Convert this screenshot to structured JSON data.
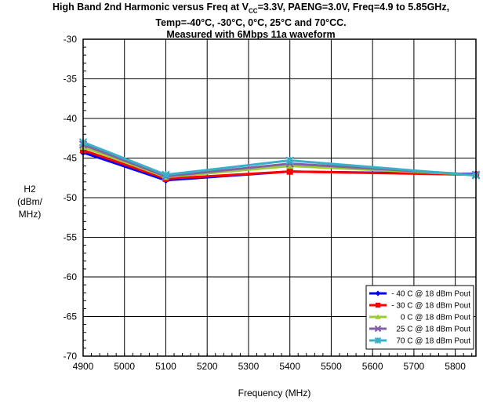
{
  "chart_data": {
    "type": "line",
    "title_prefix": "High Band 2nd Harmonic versus Freq at V",
    "title_sub": "CC",
    "title_rest": "=3.3V, PAENG=3.0V, Freq=4.9 to 5.85GHz, Temp=-40°C, -30°C, 0°C, 25°C and 70°CC.",
    "subtitle": "Measured with 6Mbps 11a waveform",
    "xlabel": "Frequency (MHz)",
    "ylabel_lines": [
      "H2",
      "(dBm/",
      "MHz)"
    ],
    "xlim": [
      4900,
      5850
    ],
    "ylim": [
      -70,
      -30
    ],
    "xticks": [
      4900,
      5000,
      5100,
      5200,
      5300,
      5400,
      5500,
      5600,
      5700,
      5800
    ],
    "yticks": [
      -30,
      -35,
      -40,
      -45,
      -50,
      -55,
      -60,
      -65,
      -70
    ],
    "grid": true,
    "legend_position": "bottom-right",
    "x": [
      4900,
      5100,
      5400,
      5850
    ],
    "series": [
      {
        "name": "- 40 C @ 18 dBm Pout",
        "color": "#0000ff",
        "marker": "diamond",
        "values": [
          -44.3,
          -47.8,
          -46.7,
          -47.0
        ]
      },
      {
        "name": "- 30 C @ 18 dBm Pout",
        "color": "#ff0000",
        "marker": "square",
        "values": [
          -44.0,
          -47.6,
          -46.7,
          -47.1
        ]
      },
      {
        "name": "0 C @ 18 dBm Pout",
        "color": "#9acd32",
        "marker": "triangle",
        "values": [
          -43.6,
          -47.4,
          -46.0,
          -47.1
        ]
      },
      {
        "name": "25 C @ 18 dBm Pout",
        "color": "#8060a8",
        "marker": "x",
        "values": [
          -43.3,
          -47.3,
          -45.7,
          -47.1
        ]
      },
      {
        "name": "70 C @ 18 dBm Pout",
        "color": "#3ab0c8",
        "marker": "star",
        "values": [
          -43.0,
          -47.1,
          -45.3,
          -47.2
        ]
      }
    ]
  }
}
